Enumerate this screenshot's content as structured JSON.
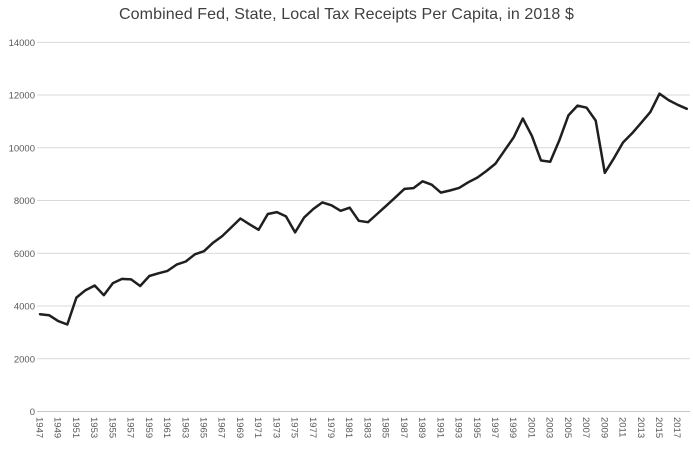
{
  "chart_data": {
    "type": "line",
    "title": "Combined Fed, State, Local Tax Receipts Per Capita, in 2018 $",
    "xlabel": "",
    "ylabel": "",
    "ylim": [
      0,
      14000
    ],
    "ytick_step": 2000,
    "ytick_labels": [
      "0",
      "2000",
      "4000",
      "6000",
      "8000",
      "10000",
      "12000",
      "14000"
    ],
    "xtick_labels": [
      "1947",
      "1949",
      "1951",
      "1953",
      "1955",
      "1957",
      "1959",
      "1961",
      "1963",
      "1965",
      "1967",
      "1969",
      "1971",
      "1973",
      "1975",
      "1977",
      "1979",
      "1981",
      "1983",
      "1985",
      "1987",
      "1989",
      "1991",
      "1993",
      "1995",
      "1997",
      "1999",
      "2001",
      "2003",
      "2005",
      "2007",
      "2009",
      "2011",
      "2013",
      "2015",
      "2017"
    ],
    "grid": true,
    "legend": "none",
    "x": [
      1947,
      1948,
      1949,
      1950,
      1951,
      1952,
      1953,
      1954,
      1955,
      1956,
      1957,
      1958,
      1959,
      1960,
      1961,
      1962,
      1963,
      1964,
      1965,
      1966,
      1967,
      1968,
      1969,
      1970,
      1971,
      1972,
      1973,
      1974,
      1975,
      1976,
      1977,
      1978,
      1979,
      1980,
      1981,
      1982,
      1983,
      1984,
      1985,
      1986,
      1987,
      1988,
      1989,
      1990,
      1991,
      1992,
      1993,
      1994,
      1995,
      1996,
      1997,
      1998,
      1999,
      2000,
      2001,
      2002,
      2003,
      2004,
      2005,
      2006,
      2007,
      2008,
      2009,
      2010,
      2011,
      2012,
      2013,
      2014,
      2015,
      2016,
      2017,
      2018
    ],
    "values": [
      3690,
      3650,
      3430,
      3300,
      4320,
      4600,
      4780,
      4410,
      4870,
      5030,
      5010,
      4760,
      5140,
      5240,
      5330,
      5570,
      5690,
      5960,
      6080,
      6400,
      6650,
      6980,
      7320,
      7100,
      6890,
      7490,
      7560,
      7400,
      6790,
      7360,
      7680,
      7930,
      7820,
      7610,
      7730,
      7230,
      7180,
      7490,
      7800,
      8120,
      8440,
      8470,
      8730,
      8600,
      8300,
      8380,
      8480,
      8690,
      8870,
      9120,
      9400,
      9900,
      10400,
      11110,
      10450,
      9520,
      9470,
      10280,
      11230,
      11600,
      11520,
      11030,
      9050,
      9600,
      10200,
      10550,
      10950,
      11360,
      12050,
      11810,
      11630,
      11480
    ],
    "line_color": "#1f1f1f",
    "line_width": 2.5,
    "gridline_color": "#d9d9d9",
    "axisline_color": "#c6c6c6",
    "tick_label_color": "#595959",
    "title_color": "#3f3f3f",
    "background": "#ffffff"
  }
}
